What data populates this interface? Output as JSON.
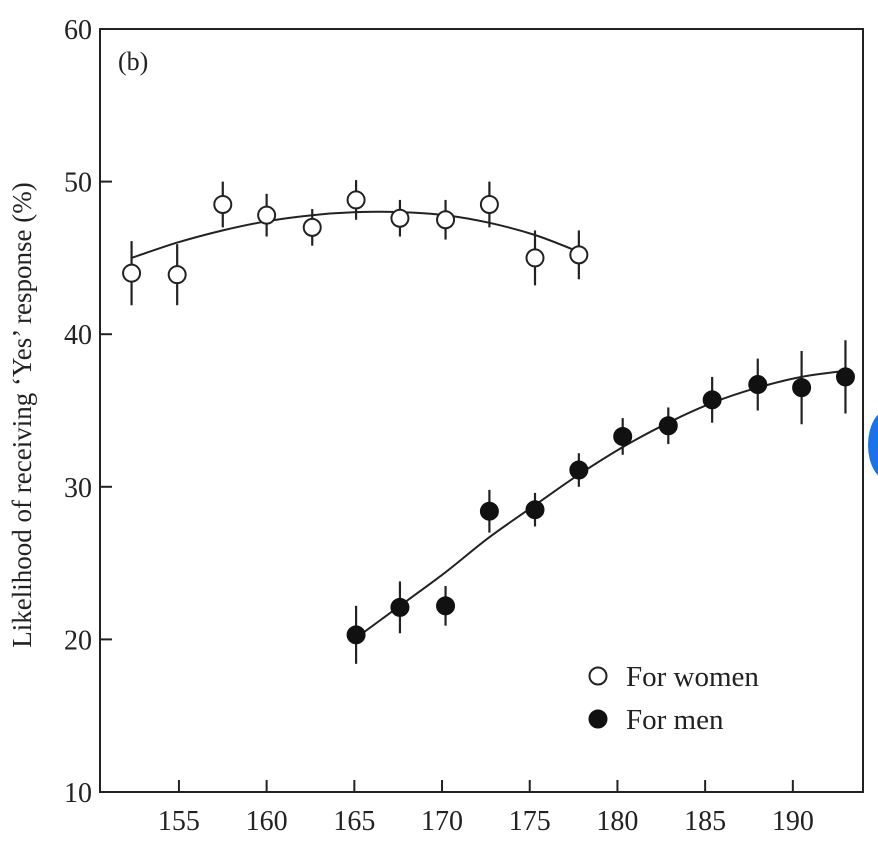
{
  "chart_data": {
    "type": "scatter",
    "panel_label": "(b)",
    "title": "",
    "xlabel": "",
    "ylabel": "Likelihood of receiving ‘Yes’ response (%)",
    "xlim": [
      150.5,
      194
    ],
    "ylim": [
      10,
      60
    ],
    "xticks": [
      155,
      160,
      165,
      170,
      175,
      180,
      185,
      190
    ],
    "yticks": [
      10,
      20,
      30,
      40,
      50,
      60
    ],
    "grid": false,
    "legend_position": "bottom-right",
    "series": [
      {
        "name": "For women",
        "marker": "open-circle",
        "x": [
          152.3,
          154.9,
          157.5,
          160.0,
          162.6,
          165.1,
          167.6,
          170.2,
          172.7,
          175.3,
          177.8
        ],
        "y": [
          44.0,
          43.9,
          48.5,
          47.8,
          47.0,
          48.8,
          47.6,
          47.5,
          48.5,
          45.0,
          45.2
        ],
        "err": [
          2.1,
          2.0,
          1.5,
          1.4,
          1.2,
          1.3,
          1.2,
          1.3,
          1.5,
          1.8,
          1.6
        ],
        "fit_x": [
          152.3,
          154.9,
          157.5,
          160.0,
          162.6,
          165.1,
          167.6,
          170.2,
          172.7,
          175.3,
          177.8
        ],
        "fit_y": [
          45.0,
          46.0,
          46.8,
          47.4,
          47.8,
          48.0,
          48.0,
          47.8,
          47.3,
          46.5,
          45.4
        ]
      },
      {
        "name": "For men",
        "marker": "filled-circle",
        "x": [
          165.1,
          167.6,
          170.2,
          172.7,
          175.3,
          177.8,
          180.3,
          182.9,
          185.4,
          188.0,
          190.5,
          193.0
        ],
        "y": [
          20.3,
          22.1,
          22.2,
          28.4,
          28.5,
          31.1,
          33.3,
          34.0,
          35.7,
          36.7,
          36.5,
          37.2
        ],
        "err": [
          1.9,
          1.7,
          1.3,
          1.4,
          1.1,
          1.1,
          1.2,
          1.2,
          1.5,
          1.7,
          2.4,
          2.4
        ],
        "fit_x": [
          165.1,
          167.6,
          170.2,
          172.7,
          175.3,
          177.8,
          180.3,
          182.9,
          185.4,
          188.0,
          190.5,
          193.0
        ],
        "fit_y": [
          20.1,
          22.2,
          24.4,
          26.7,
          28.8,
          30.8,
          32.6,
          34.2,
          35.5,
          36.5,
          37.2,
          37.6
        ]
      }
    ]
  }
}
